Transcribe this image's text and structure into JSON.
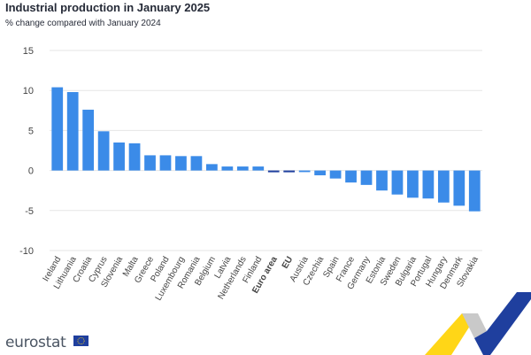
{
  "header": {
    "title": "Industrial production in January 2025",
    "subtitle": "% change compared with January 2024"
  },
  "branding": {
    "logo_text": "eurostat"
  },
  "colors": {
    "bar": "#3b8be8",
    "highlight_bar": "#1f3f9e",
    "grid": "#e6e6e6",
    "text": "#444444"
  },
  "chart_data": {
    "type": "bar",
    "title": "Industrial production in January 2025",
    "subtitle": "% change compared with January 2024",
    "categories": [
      "Ireland",
      "Lithuania",
      "Croatia",
      "Cyprus",
      "Slovenia",
      "Malta",
      "Greece",
      "Poland",
      "Luxembourg",
      "Romania",
      "Belgium",
      "Latvia",
      "Netherlands",
      "Finland",
      "Euro area",
      "EU",
      "Austria",
      "Czechia",
      "Spain",
      "France",
      "Germany",
      "Estonia",
      "Sweden",
      "Bulgaria",
      "Portugal",
      "Hungary",
      "Denmark",
      "Slovakia"
    ],
    "values": [
      10.4,
      9.8,
      7.6,
      4.9,
      3.5,
      3.4,
      1.9,
      1.9,
      1.8,
      1.8,
      0.8,
      0.5,
      0.5,
      0.5,
      0.0,
      -0.2,
      -0.2,
      -0.6,
      -1.0,
      -1.5,
      -1.8,
      -2.5,
      -3.0,
      -3.4,
      -3.5,
      -4.0,
      -4.4,
      -5.1
    ],
    "highlight": [
      "Euro area",
      "EU"
    ],
    "ylim": [
      -10,
      15
    ],
    "yticks": [
      -10,
      -5,
      0,
      5,
      10,
      15
    ],
    "xlabel": "",
    "ylabel": "",
    "grid": true,
    "legend": "none"
  }
}
